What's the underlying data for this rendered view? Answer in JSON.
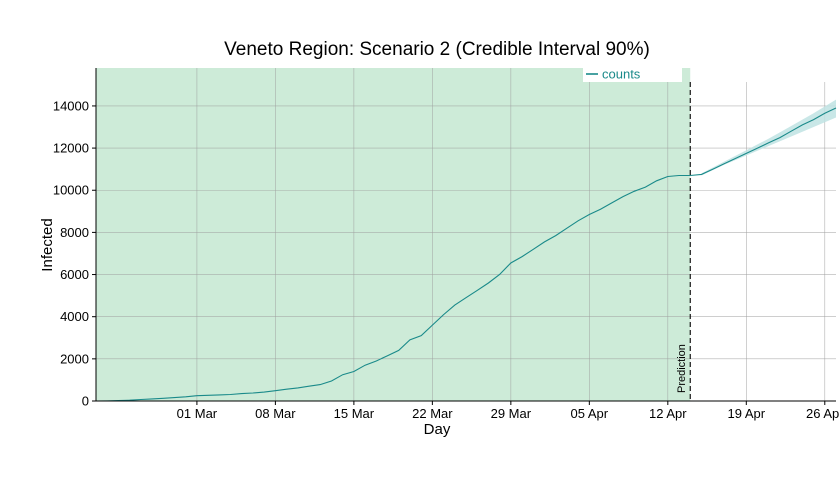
{
  "chart_data": {
    "type": "line",
    "title": "Veneto Region: Scenario 2 (Credible Interval 90%)",
    "xlabel": "Day",
    "ylabel": "Infected",
    "x_type": "date",
    "xlim": [
      "2020-02-21",
      "2020-04-27"
    ],
    "ylim": [
      0,
      15800
    ],
    "y_ticks": [
      0,
      2000,
      4000,
      6000,
      8000,
      10000,
      12000,
      14000
    ],
    "x_ticks": [
      {
        "date": "2020-03-01",
        "label": "01 Mar"
      },
      {
        "date": "2020-03-08",
        "label": "08 Mar"
      },
      {
        "date": "2020-03-15",
        "label": "15 Mar"
      },
      {
        "date": "2020-03-22",
        "label": "22 Mar"
      },
      {
        "date": "2020-03-29",
        "label": "29 Mar"
      },
      {
        "date": "2020-04-05",
        "label": "05 Apr"
      },
      {
        "date": "2020-04-12",
        "label": "12 Apr"
      },
      {
        "date": "2020-04-19",
        "label": "19 Apr"
      },
      {
        "date": "2020-04-26",
        "label": "26 Apr"
      }
    ],
    "grid": true,
    "legend": {
      "position": "top-right",
      "entries": [
        "counts"
      ]
    },
    "colors": {
      "line": "#1a8a8a",
      "observed_region": "#cdebd8",
      "band": "#bfe3e3",
      "grid": "#9e9e9e",
      "legend_text": "#1a8a8a"
    },
    "observed_region": {
      "start": "2020-02-21",
      "end": "2020-04-14"
    },
    "prediction_marker": {
      "date": "2020-04-14",
      "label": "Prediction"
    },
    "series": [
      {
        "name": "counts",
        "points": [
          [
            "2020-02-21",
            0
          ],
          [
            "2020-02-22",
            5
          ],
          [
            "2020-02-23",
            20
          ],
          [
            "2020-02-24",
            40
          ],
          [
            "2020-02-25",
            70
          ],
          [
            "2020-02-26",
            100
          ],
          [
            "2020-02-27",
            130
          ],
          [
            "2020-02-28",
            160
          ],
          [
            "2020-02-29",
            200
          ],
          [
            "2020-03-01",
            250
          ],
          [
            "2020-03-02",
            270
          ],
          [
            "2020-03-03",
            290
          ],
          [
            "2020-03-04",
            310
          ],
          [
            "2020-03-05",
            350
          ],
          [
            "2020-03-06",
            380
          ],
          [
            "2020-03-07",
            420
          ],
          [
            "2020-03-08",
            490
          ],
          [
            "2020-03-09",
            560
          ],
          [
            "2020-03-10",
            620
          ],
          [
            "2020-03-11",
            700
          ],
          [
            "2020-03-12",
            780
          ],
          [
            "2020-03-13",
            950
          ],
          [
            "2020-03-14",
            1250
          ],
          [
            "2020-03-15",
            1400
          ],
          [
            "2020-03-16",
            1700
          ],
          [
            "2020-03-17",
            1900
          ],
          [
            "2020-03-18",
            2150
          ],
          [
            "2020-03-19",
            2400
          ],
          [
            "2020-03-20",
            2900
          ],
          [
            "2020-03-21",
            3100
          ],
          [
            "2020-03-22",
            3600
          ],
          [
            "2020-03-23",
            4100
          ],
          [
            "2020-03-24",
            4550
          ],
          [
            "2020-03-25",
            4900
          ],
          [
            "2020-03-26",
            5250
          ],
          [
            "2020-03-27",
            5600
          ],
          [
            "2020-03-28",
            6000
          ],
          [
            "2020-03-29",
            6550
          ],
          [
            "2020-03-30",
            6850
          ],
          [
            "2020-03-31",
            7200
          ],
          [
            "2020-04-01",
            7550
          ],
          [
            "2020-04-02",
            7850
          ],
          [
            "2020-04-03",
            8200
          ],
          [
            "2020-04-04",
            8550
          ],
          [
            "2020-04-05",
            8850
          ],
          [
            "2020-04-06",
            9100
          ],
          [
            "2020-04-07",
            9400
          ],
          [
            "2020-04-08",
            9700
          ],
          [
            "2020-04-09",
            9950
          ],
          [
            "2020-04-10",
            10150
          ],
          [
            "2020-04-11",
            10450
          ],
          [
            "2020-04-12",
            10650
          ],
          [
            "2020-04-13",
            10700
          ],
          [
            "2020-04-14",
            10700
          ],
          [
            "2020-04-15",
            10750
          ],
          [
            "2020-04-16",
            11000
          ],
          [
            "2020-04-17",
            11250
          ],
          [
            "2020-04-18",
            11500
          ],
          [
            "2020-04-19",
            11750
          ],
          [
            "2020-04-20",
            12000
          ],
          [
            "2020-04-21",
            12250
          ],
          [
            "2020-04-22",
            12500
          ],
          [
            "2020-04-23",
            12800
          ],
          [
            "2020-04-24",
            13100
          ],
          [
            "2020-04-25",
            13350
          ],
          [
            "2020-04-26",
            13650
          ],
          [
            "2020-04-27",
            13900
          ]
        ]
      }
    ],
    "credible_interval": {
      "level": "90%",
      "points": [
        [
          "2020-04-15",
          10700,
          10800
        ],
        [
          "2020-04-17",
          11200,
          11350
        ],
        [
          "2020-04-19",
          11650,
          11900
        ],
        [
          "2020-04-21",
          12100,
          12450
        ],
        [
          "2020-04-23",
          12550,
          13050
        ],
        [
          "2020-04-25",
          13000,
          13650
        ],
        [
          "2020-04-27",
          13450,
          14300
        ]
      ]
    }
  }
}
